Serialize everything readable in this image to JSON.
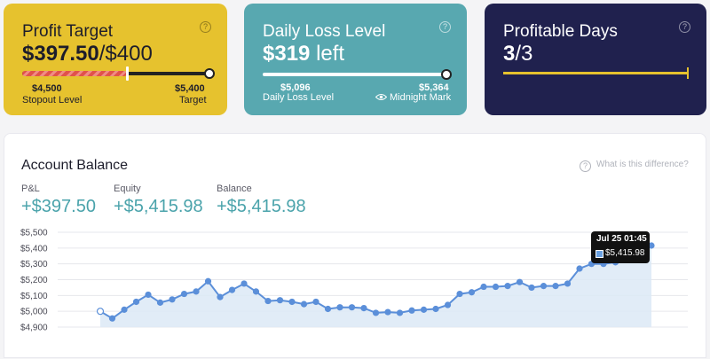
{
  "profit_target": {
    "title": "Profit Target",
    "value": "$397.50",
    "target": "/$400",
    "stopout_value": "$4,500",
    "stopout_label": "Stopout Level",
    "target_value": "$5,400",
    "target_label": "Target",
    "progress_fraction": 0.55,
    "help": "?"
  },
  "daily_loss": {
    "title": "Daily Loss Level",
    "value": "$319",
    "suffix": "left",
    "level_value": "$5,096",
    "level_label": "Daily Loss Level",
    "mark_value": "$5,364",
    "mark_label": "Midnight Mark",
    "help": "?"
  },
  "profitable_days": {
    "title": "Profitable Days",
    "value": "3",
    "total": "/3",
    "help": "?"
  },
  "balance": {
    "title": "Account Balance",
    "difference_link": "What is this difference?",
    "pl_label": "P&L",
    "pl_value": "+$397.50",
    "equity_label": "Equity",
    "equity_value": "+$5,415.98",
    "balance_label": "Balance",
    "balance_value": "+$5,415.98",
    "tooltip_date": "Jul 25 01:45",
    "tooltip_value": "$5,415.98"
  },
  "colors": {
    "yellow": "#e6c22e",
    "teal": "#58a8b0",
    "navy": "#20214e",
    "line": "#5b8fd9",
    "fill": "#dce9f6"
  },
  "chart_data": {
    "type": "area",
    "y_ticks": [
      "$5,500",
      "$5,400",
      "$5,300",
      "$5,200",
      "$5,100",
      "$5,000",
      "$4,900"
    ],
    "ylim": [
      4900,
      5500
    ],
    "grid": true,
    "series": [
      {
        "values": [
          5000,
          4955,
          5010,
          5060,
          5105,
          5055,
          5075,
          5110,
          5125,
          5190,
          5090,
          5135,
          5175,
          5125,
          5065,
          5070,
          5060,
          5045,
          5060,
          5015,
          5025,
          5025,
          5020,
          4990,
          4995,
          4990,
          5005,
          5010,
          5015,
          5040,
          5110,
          5120,
          5155,
          5155,
          5160,
          5185,
          5150,
          5160,
          5160,
          5175,
          5270,
          5300,
          5300,
          5310,
          5330,
          5360,
          5415.98
        ]
      }
    ]
  }
}
